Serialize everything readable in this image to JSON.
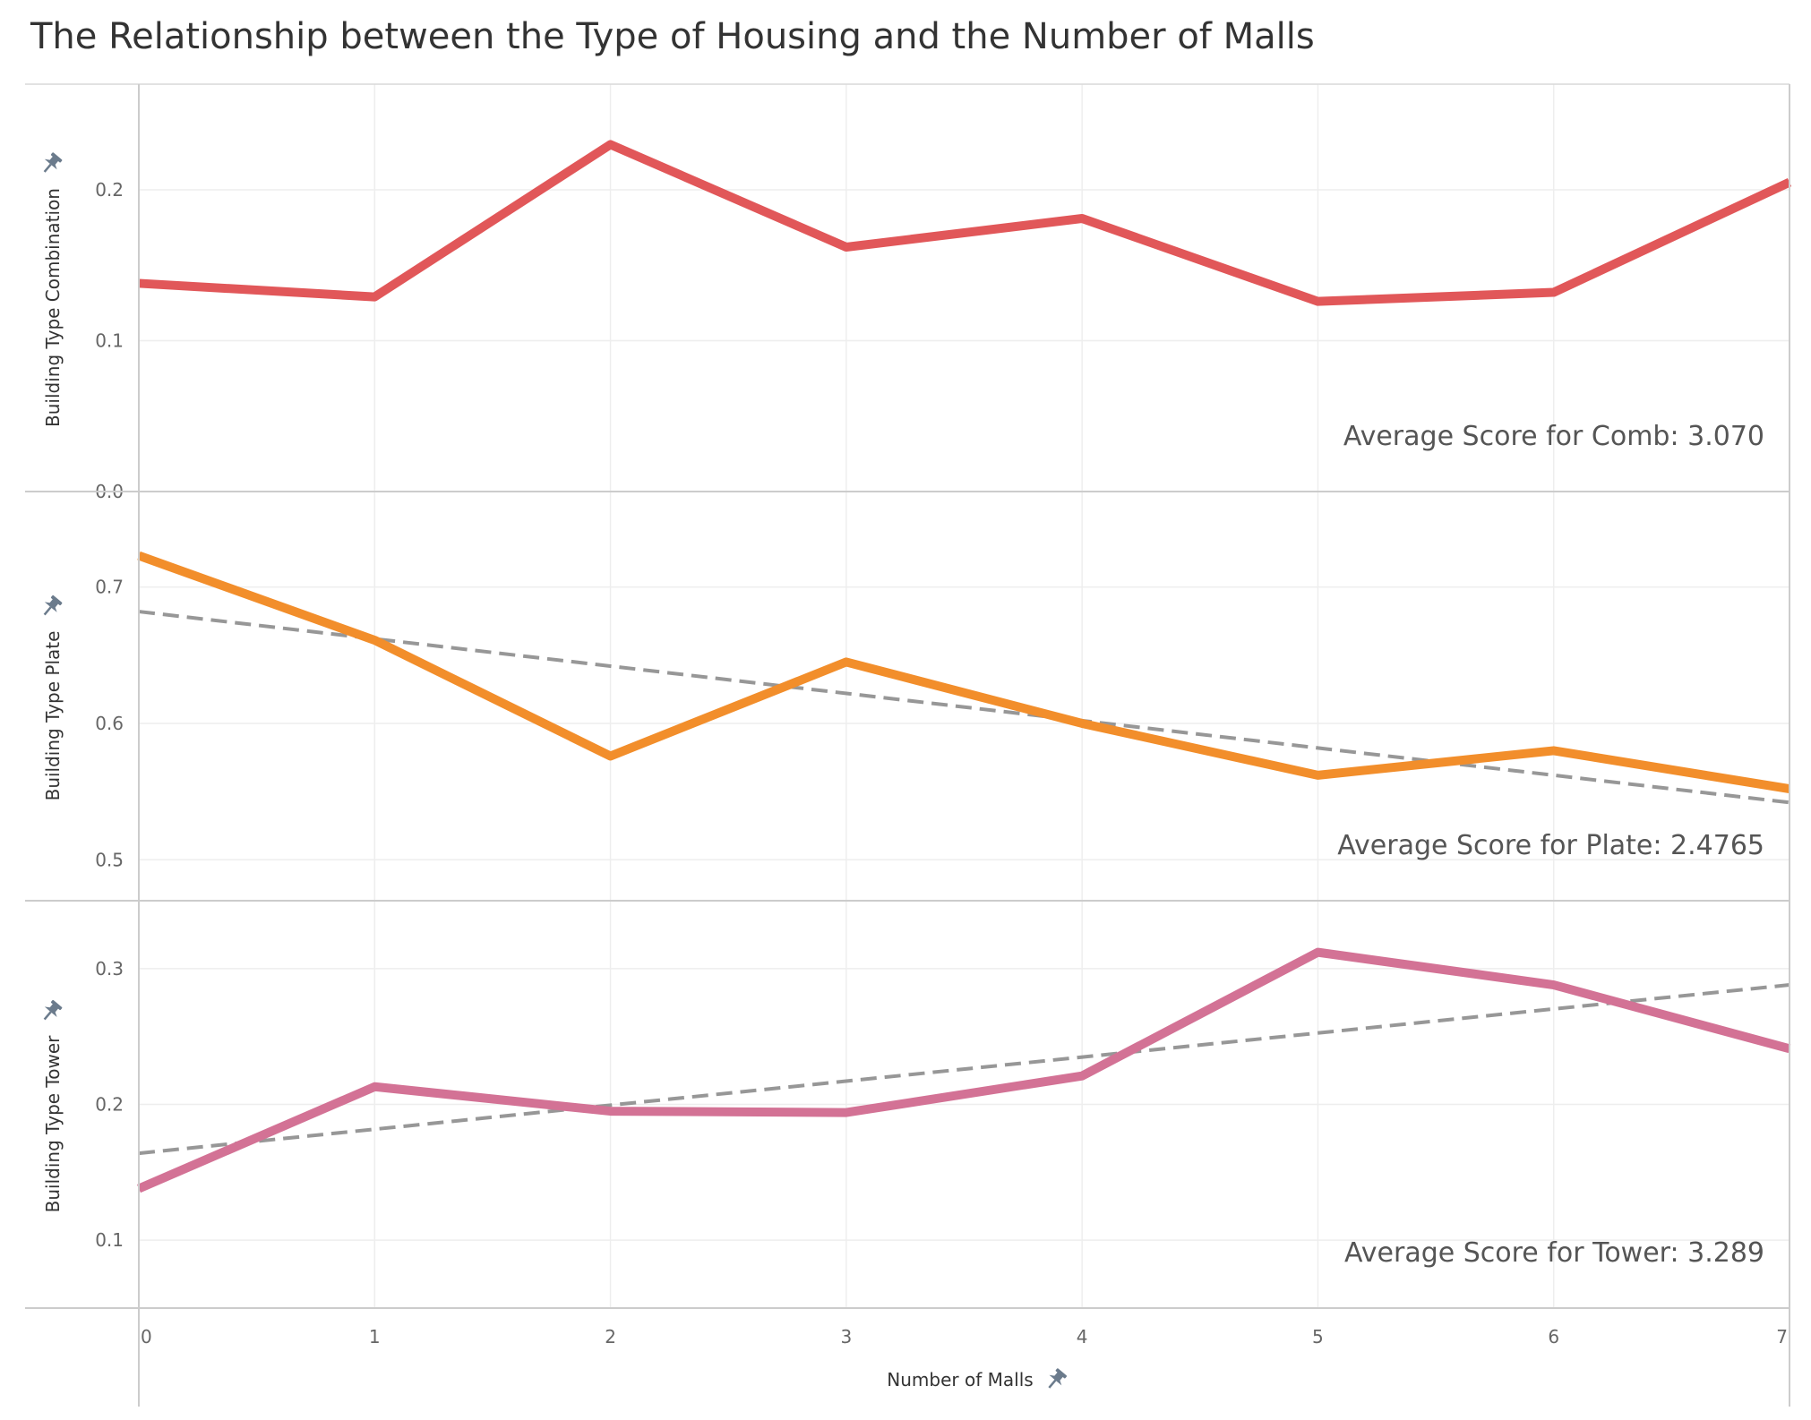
{
  "title": "The Relationship between the Type of Housing and the Number of Malls",
  "chart_data": [
    {
      "type": "line",
      "name": "combination",
      "x": [
        0,
        1,
        2,
        3,
        4,
        5,
        6,
        7
      ],
      "values": [
        0.138,
        0.129,
        0.23,
        0.162,
        0.181,
        0.126,
        0.132,
        0.205
      ],
      "ylabel": "Building Type Combination",
      "ylim": [
        0.0,
        0.27
      ],
      "yticks": [
        0.0,
        0.1,
        0.2
      ],
      "color": "#e15759",
      "trend": null,
      "annotation": "Average Score for Comb: 3.070"
    },
    {
      "type": "line",
      "name": "plate",
      "x": [
        0,
        1,
        2,
        3,
        4,
        5,
        6,
        7
      ],
      "values": [
        0.723,
        0.661,
        0.576,
        0.645,
        0.6,
        0.562,
        0.58,
        0.552
      ],
      "ylabel": "Building Type Plate",
      "ylim": [
        0.47,
        0.77
      ],
      "yticks": [
        0.5,
        0.6,
        0.7
      ],
      "color": "#f28e2b",
      "trend": [
        0.682,
        0.542
      ],
      "annotation": "Average Score for Plate: 2.4765"
    },
    {
      "type": "line",
      "name": "tower",
      "x": [
        0,
        1,
        2,
        3,
        4,
        5,
        6,
        7
      ],
      "values": [
        0.138,
        0.213,
        0.195,
        0.194,
        0.221,
        0.312,
        0.288,
        0.241
      ],
      "ylabel": "Building Type Tower",
      "ylim": [
        0.05,
        0.35
      ],
      "yticks": [
        0.1,
        0.2,
        0.3
      ],
      "color": "#d37295",
      "trend": [
        0.164,
        0.288
      ],
      "annotation": "Average Score for Tower: 3.289"
    }
  ],
  "x_axis": {
    "title": "Number of Malls",
    "ticks": [
      0,
      1,
      2,
      3,
      4,
      5,
      6,
      7
    ],
    "xlim": [
      0,
      7
    ]
  },
  "icons": {
    "pin": "pin-icon"
  }
}
